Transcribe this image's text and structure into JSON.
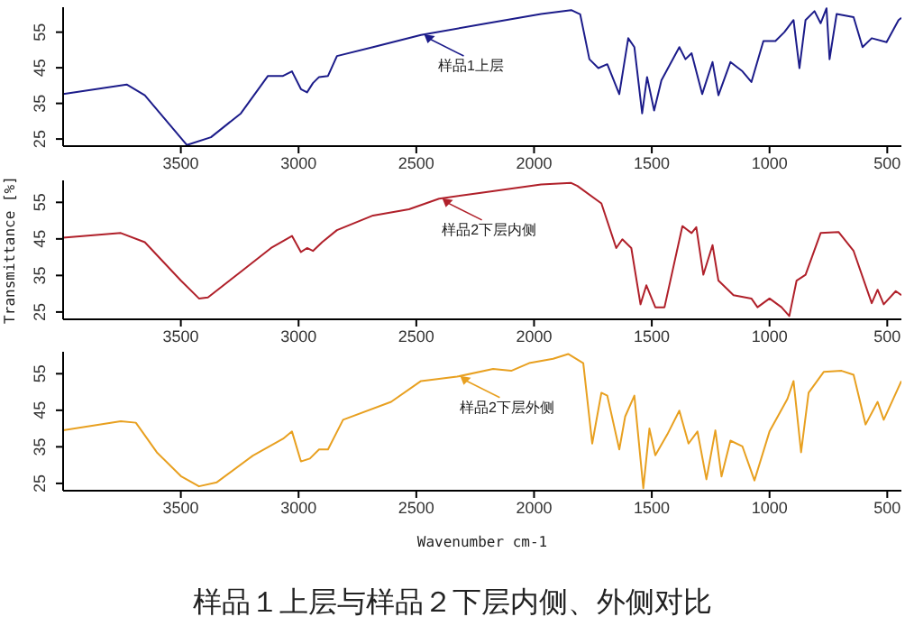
{
  "chart_data": [
    {
      "type": "line",
      "xlim": [
        4000,
        440
      ],
      "xticks": [
        3500,
        3000,
        2500,
        2000,
        1500,
        1000,
        500
      ],
      "ylim": [
        23,
        62
      ],
      "yticks": [
        25,
        35,
        45,
        55
      ],
      "marker": "none",
      "line_style": "solid",
      "annotations": [
        {
          "text": "样品1上层",
          "x": 2467,
          "y": 54.4
        }
      ],
      "series": [
        {
          "color": "#1c1c8a",
          "x": [
            4000,
            3730,
            3653,
            3474,
            3372,
            3245,
            3130,
            3066,
            3028,
            2990,
            2964,
            2939,
            2913,
            2875,
            2837,
            2684,
            2480,
            2225,
            1970,
            1842,
            1804,
            1765,
            1727,
            1689,
            1638,
            1600,
            1574,
            1541,
            1520,
            1490,
            1459,
            1383,
            1357,
            1331,
            1286,
            1242,
            1217,
            1166,
            1115,
            1077,
            1026,
            975,
            937,
            898,
            873,
            847,
            809,
            783,
            758,
            745,
            715,
            643,
            605,
            566,
            503,
            452,
            440
          ],
          "values": [
            37.6,
            40.3,
            37.3,
            23.3,
            25.5,
            32.2,
            42.7,
            42.7,
            44,
            39,
            38.1,
            40.7,
            42.4,
            42.7,
            48.3,
            50.8,
            54.2,
            57.2,
            60.1,
            61.2,
            60,
            47.4,
            44.9,
            46,
            37.6,
            53.3,
            50.8,
            32.2,
            42.4,
            33,
            41.5,
            50.8,
            47.4,
            49.1,
            37.6,
            46.6,
            37.3,
            46.6,
            44,
            41,
            52.5,
            52.5,
            55,
            58.4,
            44.9,
            58.4,
            60.9,
            57.5,
            61.7,
            47.4,
            60.1,
            59.2,
            50.8,
            53.3,
            52.2,
            58.4,
            59
          ]
        }
      ]
    },
    {
      "type": "line",
      "ylabel": "Transmittance [%]",
      "xlim": [
        4000,
        440
      ],
      "xticks": [
        3500,
        3000,
        2500,
        2000,
        1500,
        1000,
        500
      ],
      "ylim": [
        23,
        61
      ],
      "yticks": [
        25,
        35,
        45,
        55
      ],
      "marker": "none",
      "line_style": "solid",
      "annotations": [
        {
          "text": "样品2下层内侧",
          "x": 2390,
          "y": 56.1
        }
      ],
      "series": [
        {
          "color": "#b0202a",
          "x": [
            4000,
            3755,
            3653,
            3500,
            3423,
            3385,
            3245,
            3117,
            3028,
            2990,
            2964,
            2939,
            2900,
            2837,
            2684,
            2531,
            2403,
            2225,
            1970,
            1842,
            1816,
            1714,
            1651,
            1625,
            1587,
            1548,
            1523,
            1485,
            1446,
            1370,
            1331,
            1311,
            1281,
            1242,
            1217,
            1153,
            1077,
            1051,
            1000,
            949,
            916,
            885,
            847,
            783,
            707,
            643,
            566,
            541,
            515,
            464,
            440
          ],
          "values": [
            45.3,
            46.6,
            44.1,
            33.6,
            28.7,
            29,
            36,
            42.5,
            45.8,
            41.4,
            42.5,
            41.7,
            44.1,
            47.4,
            51.4,
            53.1,
            56,
            57.6,
            59.9,
            60.3,
            59.5,
            54.7,
            42.5,
            44.9,
            42.5,
            27.1,
            32.3,
            26.3,
            26.3,
            48.5,
            46.6,
            48.2,
            35.2,
            43.3,
            33.6,
            29.6,
            28.7,
            26.3,
            28.7,
            26.3,
            23.9,
            33.6,
            35.2,
            46.6,
            46.9,
            41.7,
            27.4,
            31.1,
            27.1,
            30.7,
            29.6
          ]
        }
      ]
    },
    {
      "type": "line",
      "xlabel": "Wavenumber cm-1",
      "xlim": [
        4000,
        440
      ],
      "xticks": [
        3500,
        3000,
        2500,
        2000,
        1500,
        1000,
        500
      ],
      "ylim": [
        23,
        61
      ],
      "yticks": [
        25,
        35,
        45,
        55
      ],
      "marker": "none",
      "line_style": "solid",
      "annotations": [
        {
          "text": "样品2下层外侧",
          "x": 2314,
          "y": 54.4
        },
        "样品１上层与样品２下层内侧、外侧对比"
      ],
      "series": [
        {
          "color": "#e8a020",
          "x": [
            4000,
            3755,
            3691,
            3602,
            3500,
            3423,
            3347,
            3194,
            3066,
            3028,
            2990,
            2952,
            2913,
            2875,
            2811,
            2607,
            2480,
            2327,
            2174,
            2097,
            2021,
            1919,
            1855,
            1791,
            1753,
            1714,
            1689,
            1638,
            1613,
            1574,
            1536,
            1510,
            1485,
            1434,
            1383,
            1344,
            1306,
            1268,
            1230,
            1204,
            1166,
            1115,
            1064,
            1000,
            924,
            898,
            866,
            834,
            770,
            694,
            643,
            592,
            541,
            515,
            440
          ],
          "values": [
            39.5,
            42,
            41.6,
            33.5,
            27,
            24.2,
            25.3,
            32.6,
            37.2,
            39.2,
            31,
            31.8,
            34.3,
            34.3,
            42.4,
            47.3,
            53,
            54.2,
            56.3,
            55.8,
            57.9,
            59.1,
            60.4,
            57.9,
            35.9,
            49.8,
            49,
            34.3,
            43.3,
            49,
            23.7,
            40,
            32.7,
            38.4,
            44.9,
            35.9,
            39.2,
            26.1,
            39.5,
            26.9,
            36.7,
            35.1,
            25.8,
            39.2,
            48.1,
            53,
            33.5,
            49.8,
            55.5,
            55.8,
            54.7,
            41.1,
            47.3,
            42.4,
            53
          ]
        }
      ]
    }
  ]
}
